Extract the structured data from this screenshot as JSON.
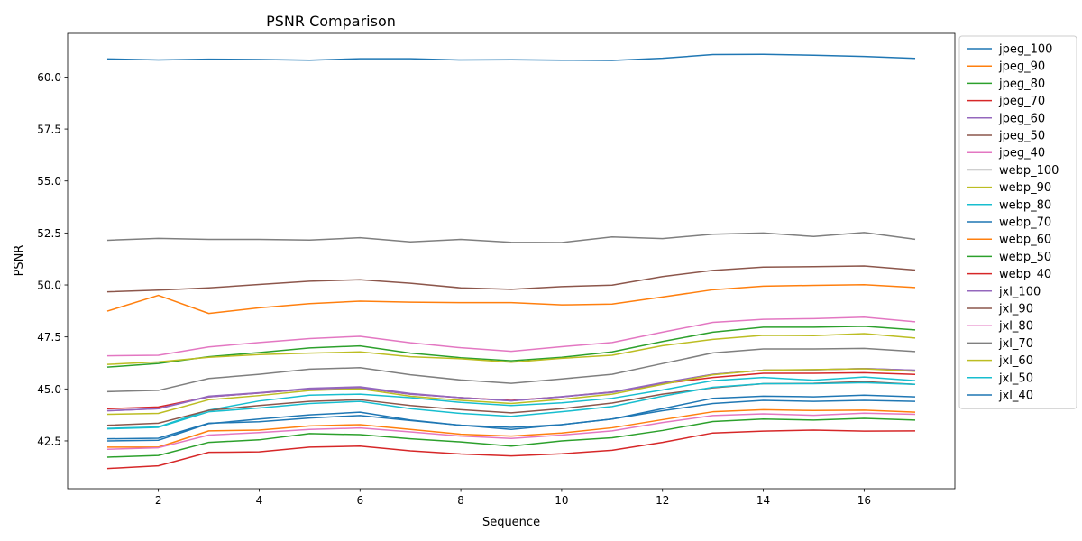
{
  "chart_data": {
    "type": "line",
    "title": "PSNR Comparison",
    "xlabel": "Sequence",
    "ylabel": "PSNR",
    "xlim": [
      0.2,
      17.8
    ],
    "ylim": [
      40.2,
      62.1
    ],
    "xticks": [
      2,
      4,
      6,
      8,
      10,
      12,
      14,
      16
    ],
    "yticks": [
      42.5,
      45.0,
      47.5,
      50.0,
      52.5,
      55.0,
      57.5,
      60.0
    ],
    "ytick_labels": [
      "42.5",
      "45.0",
      "47.5",
      "50.0",
      "52.5",
      "55.0",
      "57.5",
      "60.0"
    ],
    "grid": false,
    "legend_position": "outside-right",
    "x": [
      1,
      2,
      3,
      4,
      5,
      6,
      7,
      8,
      9,
      10,
      11,
      12,
      13,
      14,
      15,
      16,
      17
    ],
    "series": [
      {
        "name": "jpeg_100",
        "color": "#1f77b4",
        "values": [
          60.87,
          60.82,
          60.86,
          60.84,
          60.81,
          60.88,
          60.88,
          60.82,
          60.83,
          60.81,
          60.8,
          60.9,
          61.08,
          61.09,
          61.05,
          60.99,
          60.9
        ]
      },
      {
        "name": "jpeg_90",
        "color": "#ff7f0e",
        "values": [
          48.75,
          49.5,
          48.63,
          48.9,
          49.1,
          49.22,
          49.17,
          49.15,
          49.15,
          49.04,
          49.08,
          49.42,
          49.77,
          49.94,
          49.98,
          50.01,
          49.88
        ]
      },
      {
        "name": "jpeg_80",
        "color": "#2ca02c",
        "values": [
          46.05,
          46.22,
          46.55,
          46.75,
          46.97,
          47.07,
          46.72,
          46.5,
          46.35,
          46.52,
          46.78,
          47.28,
          47.73,
          47.97,
          47.97,
          48.01,
          47.84
        ]
      },
      {
        "name": "jpeg_70",
        "color": "#d62728",
        "values": [
          44.05,
          44.13,
          44.62,
          44.8,
          45.0,
          45.05,
          44.75,
          44.58,
          44.45,
          44.62,
          44.85,
          45.25,
          45.55,
          45.75,
          45.75,
          45.78,
          45.7
        ]
      },
      {
        "name": "jpeg_60",
        "color": "#9467bd",
        "values": [
          43.95,
          44.05,
          44.65,
          44.82,
          45.03,
          45.1,
          44.78,
          44.58,
          44.43,
          44.63,
          44.85,
          45.3,
          45.7,
          45.9,
          45.92,
          45.98,
          45.9
        ]
      },
      {
        "name": "jpeg_50",
        "color": "#8c564b",
        "values": [
          49.67,
          49.75,
          49.86,
          50.02,
          50.18,
          50.25,
          50.08,
          49.86,
          49.79,
          49.92,
          49.99,
          50.4,
          50.7,
          50.86,
          50.88,
          50.91,
          50.72
        ]
      },
      {
        "name": "jpeg_40",
        "color": "#e377c2",
        "values": [
          46.59,
          46.62,
          47.02,
          47.23,
          47.42,
          47.53,
          47.22,
          46.98,
          46.81,
          47.03,
          47.23,
          47.73,
          48.2,
          48.35,
          48.38,
          48.45,
          48.23
        ]
      },
      {
        "name": "webp_100",
        "color": "#7f7f7f",
        "values": [
          52.15,
          52.24,
          52.19,
          52.19,
          52.16,
          52.27,
          52.07,
          52.19,
          52.05,
          52.04,
          52.31,
          52.23,
          52.44,
          52.5,
          52.33,
          52.52,
          52.2
        ]
      },
      {
        "name": "webp_90",
        "color": "#bcbd22",
        "values": [
          46.18,
          46.3,
          46.52,
          46.65,
          46.72,
          46.78,
          46.55,
          46.45,
          46.28,
          46.47,
          46.62,
          47.08,
          47.38,
          47.58,
          47.56,
          47.66,
          47.45
        ]
      },
      {
        "name": "webp_80",
        "color": "#17becf",
        "values": [
          43.1,
          43.17,
          43.98,
          44.42,
          44.7,
          44.75,
          44.58,
          44.35,
          44.2,
          44.33,
          44.55,
          44.95,
          45.4,
          45.55,
          45.42,
          45.57,
          45.4
        ]
      },
      {
        "name": "webp_70",
        "color": "#1f77b4",
        "values": [
          42.6,
          42.63,
          43.35,
          43.42,
          43.6,
          43.72,
          43.48,
          43.25,
          43.15,
          43.28,
          43.55,
          43.95,
          44.3,
          44.45,
          44.4,
          44.45,
          44.4
        ]
      },
      {
        "name": "webp_60",
        "color": "#ff7f0e",
        "values": [
          42.2,
          42.2,
          42.98,
          43.02,
          43.22,
          43.28,
          43.05,
          42.82,
          42.73,
          42.88,
          43.13,
          43.52,
          43.9,
          44.0,
          43.96,
          43.98,
          43.88
        ]
      },
      {
        "name": "webp_50",
        "color": "#2ca02c",
        "values": [
          41.72,
          41.8,
          42.43,
          42.55,
          42.85,
          42.8,
          42.6,
          42.45,
          42.25,
          42.5,
          42.65,
          43.0,
          43.43,
          43.55,
          43.5,
          43.58,
          43.5
        ]
      },
      {
        "name": "webp_40",
        "color": "#d62728",
        "values": [
          41.17,
          41.3,
          41.95,
          41.97,
          42.2,
          42.25,
          42.02,
          41.87,
          41.78,
          41.88,
          42.05,
          42.43,
          42.88,
          42.97,
          43.02,
          42.97,
          42.98
        ]
      },
      {
        "name": "jxl_100",
        "color": "#9467bd",
        "values": [
          43.95,
          44.05,
          44.62,
          44.8,
          45.0,
          45.05,
          44.75,
          44.58,
          44.43,
          44.62,
          44.83,
          45.28,
          45.7,
          45.9,
          45.92,
          45.98,
          45.9
        ]
      },
      {
        "name": "jxl_90",
        "color": "#8c564b",
        "values": [
          43.25,
          43.35,
          43.97,
          44.2,
          44.4,
          44.48,
          44.2,
          44.0,
          43.85,
          44.05,
          44.32,
          44.75,
          45.05,
          45.25,
          45.27,
          45.35,
          45.22
        ]
      },
      {
        "name": "jxl_80",
        "color": "#e377c2",
        "values": [
          42.1,
          42.17,
          42.78,
          42.9,
          43.05,
          43.12,
          42.93,
          42.73,
          42.62,
          42.78,
          42.98,
          43.38,
          43.72,
          43.8,
          43.73,
          43.83,
          43.78
        ]
      },
      {
        "name": "jxl_70",
        "color": "#7f7f7f",
        "values": [
          44.87,
          44.93,
          45.5,
          45.7,
          45.95,
          46.02,
          45.68,
          45.43,
          45.27,
          45.48,
          45.7,
          46.22,
          46.73,
          46.92,
          46.92,
          46.95,
          46.8
        ]
      },
      {
        "name": "jxl_60",
        "color": "#bcbd22",
        "values": [
          43.78,
          43.82,
          44.48,
          44.68,
          44.92,
          45.0,
          44.65,
          44.45,
          44.3,
          44.5,
          44.75,
          45.22,
          45.68,
          45.9,
          45.93,
          45.97,
          45.85
        ]
      },
      {
        "name": "jxl_50",
        "color": "#17becf",
        "values": [
          43.08,
          43.15,
          43.9,
          44.08,
          44.3,
          44.4,
          44.05,
          43.82,
          43.68,
          43.9,
          44.15,
          44.65,
          45.08,
          45.25,
          45.25,
          45.3,
          45.22
        ]
      },
      {
        "name": "jxl_40",
        "color": "#1f77b4",
        "values": [
          42.5,
          42.53,
          43.33,
          43.55,
          43.75,
          43.88,
          43.5,
          43.25,
          43.05,
          43.28,
          43.55,
          44.05,
          44.55,
          44.65,
          44.62,
          44.7,
          44.62
        ]
      }
    ]
  }
}
